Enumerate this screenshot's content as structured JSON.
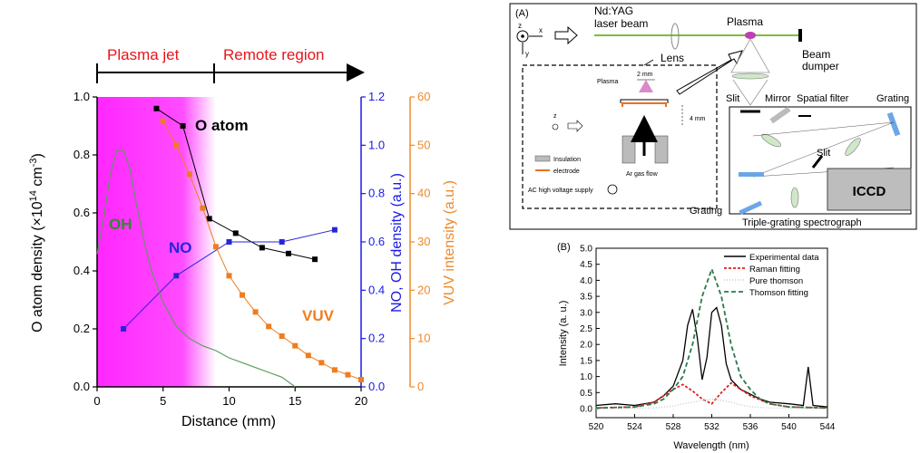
{
  "left_panel": {
    "region_labels": [
      "Plasma jet",
      "Remote region"
    ],
    "xlabel": "Distance (mm)",
    "ylabel_left": "O atom density (×10",
    "ylabel_left_sup": "14",
    "ylabel_left_unit": " cm",
    "ylabel_left_unit_sup": "-3",
    "ylabel_left_close": ")",
    "ylabel_mid": "NO, OH density (a.u.)",
    "ylabel_right": "VUV intensity (a.u.)",
    "series_labels": {
      "o_atom": "O atom",
      "oh": "OH",
      "no": "NO",
      "vuv": "VUV"
    },
    "x_ticks": [
      "0",
      "5",
      "10",
      "15",
      "20"
    ],
    "y_left_ticks": [
      "0.0",
      "0.2",
      "0.4",
      "0.6",
      "0.8",
      "1.0"
    ],
    "y_mid_ticks": [
      "0.0",
      "0.2",
      "0.4",
      "0.6",
      "0.8",
      "1.0",
      "1.2"
    ],
    "y_right_ticks": [
      "0",
      "10",
      "20",
      "30",
      "40",
      "50",
      "60"
    ],
    "colors": {
      "o_atom": "#000000",
      "no": "#2626d9",
      "vuv": "#ee7d1f",
      "oh": "#5a9a5a",
      "plasma": "#ff00ff",
      "region_text": "#e8151b",
      "left_axis": "#000000",
      "mid_axis": "#1a1ae6",
      "right_axis": "#ee8a2a",
      "oh_label": "#2e8b2e"
    }
  },
  "schematic": {
    "panel_label": "(A)",
    "laser_label_line1": "Nd:YAG",
    "laser_label_line2": "laser beam",
    "lens_label": "Lens",
    "plasma_label": "Plasma",
    "beam_dumper_line1": "Beam",
    "beam_dumper_line2": "dumper",
    "slit_label_top": "Slit",
    "mirror_label": "Mirror",
    "spatial_filter_label": "Spatial filter",
    "grating_label_right": "Grating",
    "slit_label_mid": "Slit",
    "iccd_label": "ICCD",
    "grating_label_left": "Grating",
    "spectrograph_label": "Triple-grating spectrograph",
    "inset_plasma_label": "Plasma",
    "inset_2mm": "2 mm",
    "inset_4mm": "4 mm",
    "inset_insulation": "Insulation",
    "inset_electrode": "electrode",
    "inset_gas_flow": "Ar gas flow",
    "inset_ac_supply": "AC high voltage supply",
    "axis_z": "z",
    "axis_x": "x",
    "axis_y": "y"
  },
  "spectrum_panel": {
    "panel_label": "(B)",
    "xlabel": "Wavelength (nm)",
    "ylabel": "Intensity (a. u.)",
    "x_ticks": [
      "520",
      "524",
      "528",
      "532",
      "536",
      "540",
      "544"
    ],
    "y_ticks": [
      "0.0",
      "0.5",
      "1.0",
      "1.5",
      "2.0",
      "2.5",
      "3.0",
      "3.5",
      "4.0",
      "4.5",
      "5.0"
    ],
    "legend": [
      "Experimental data",
      "Raman fitting",
      "Pure thomson",
      "Thomson fitting"
    ]
  },
  "chart_data": [
    {
      "type": "line",
      "xlabel": "Distance (mm)",
      "ylabel": "O atom density (×10^14 cm^-3)",
      "xlim": [
        0,
        20
      ],
      "ylim": [
        0,
        1.0
      ],
      "y2lim_no_oh": [
        0,
        1.2
      ],
      "y3lim_vuv": [
        0,
        60
      ],
      "shaded_region_x": [
        0,
        9
      ],
      "series": [
        {
          "name": "O atom",
          "axis": "left",
          "x": [
            4.5,
            6.5,
            8.5,
            10.5,
            12.5,
            14.5,
            16.5
          ],
          "values": [
            0.96,
            0.9,
            0.58,
            0.53,
            0.48,
            0.46,
            0.44
          ]
        },
        {
          "name": "NO",
          "axis": "mid",
          "x": [
            2,
            6,
            10,
            14,
            18
          ],
          "values": [
            0.24,
            0.46,
            0.6,
            0.6,
            0.65
          ]
        },
        {
          "name": "VUV",
          "axis": "right",
          "x": [
            5,
            6,
            7,
            8,
            9,
            10,
            11,
            12,
            13,
            14,
            15,
            16,
            17,
            18,
            19,
            20
          ],
          "values": [
            55,
            50,
            44,
            37,
            29,
            23,
            19,
            15.5,
            12.5,
            10.5,
            8.5,
            6.5,
            5,
            3.5,
            2.5,
            1.5
          ]
        },
        {
          "name": "OH",
          "axis": "mid",
          "x": [
            0,
            0.5,
            1,
            1.5,
            2,
            2.5,
            3,
            3.5,
            4,
            5,
            6,
            7,
            8,
            9,
            10,
            11,
            12,
            13,
            14,
            15
          ],
          "values": [
            0.55,
            0.7,
            0.88,
            0.98,
            0.98,
            0.9,
            0.75,
            0.62,
            0.5,
            0.35,
            0.25,
            0.2,
            0.17,
            0.15,
            0.12,
            0.1,
            0.08,
            0.06,
            0.04,
            0.0
          ]
        }
      ]
    },
    {
      "type": "line",
      "xlabel": "Wavelength (nm)",
      "ylabel": "Intensity (a. u.)",
      "xlim": [
        520,
        544
      ],
      "ylim": [
        0,
        5.0
      ],
      "series": [
        {
          "name": "Experimental data",
          "x": [
            520,
            522,
            524,
            526,
            527,
            528,
            529,
            529.5,
            530,
            530.5,
            531,
            531.5,
            532,
            532.5,
            533,
            533.5,
            534,
            535,
            536,
            537,
            538,
            540,
            541.5,
            542,
            542.5,
            544
          ],
          "values": [
            0.1,
            0.15,
            0.1,
            0.2,
            0.4,
            0.7,
            1.5,
            2.6,
            3.1,
            2.2,
            0.9,
            1.6,
            3.0,
            3.15,
            2.6,
            1.4,
            0.9,
            0.6,
            0.45,
            0.3,
            0.2,
            0.15,
            0.1,
            1.3,
            0.1,
            0.05
          ]
        },
        {
          "name": "Raman fitting",
          "x": [
            520,
            524,
            526,
            528,
            529,
            530,
            531,
            532,
            533,
            534,
            535,
            536,
            538,
            540,
            544
          ],
          "values": [
            0.02,
            0.05,
            0.2,
            0.6,
            0.75,
            0.55,
            0.3,
            0.15,
            0.5,
            0.8,
            0.6,
            0.4,
            0.15,
            0.05,
            0.02
          ]
        },
        {
          "name": "Pure thomson",
          "x": [
            520,
            524,
            526,
            528,
            529,
            530,
            531,
            532,
            533,
            534,
            535,
            536,
            538,
            540,
            544
          ],
          "values": [
            0.0,
            0.01,
            0.02,
            0.08,
            0.15,
            0.2,
            0.25,
            0.3,
            0.25,
            0.2,
            0.12,
            0.06,
            0.02,
            0.01,
            0.0
          ]
        },
        {
          "name": "Thomson fitting",
          "x": [
            520,
            524,
            526,
            527,
            528,
            529,
            530,
            531,
            532,
            533,
            534,
            535,
            536,
            537,
            538,
            540,
            544
          ],
          "values": [
            0.02,
            0.05,
            0.15,
            0.3,
            0.6,
            1.0,
            2.0,
            3.5,
            4.35,
            3.5,
            2.0,
            1.0,
            0.6,
            0.3,
            0.15,
            0.05,
            0.02
          ]
        }
      ]
    }
  ]
}
